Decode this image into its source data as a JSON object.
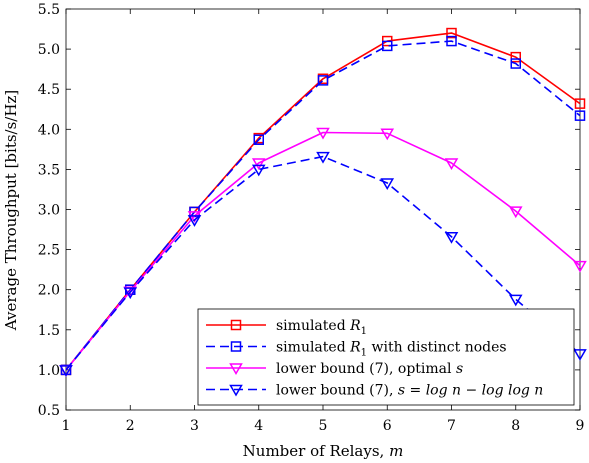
{
  "chart_data": {
    "type": "line",
    "title": "",
    "xlabel": "Number of Relays, m",
    "xlabel_parts": {
      "text": "Number of Relays, ",
      "var": "m"
    },
    "ylabel": "Average Throughput [bits/s/Hz]",
    "x": [
      1,
      2,
      3,
      4,
      5,
      6,
      7,
      8,
      9
    ],
    "xlim": [
      1,
      9
    ],
    "ylim": [
      0.5,
      5.5
    ],
    "xticks": [
      "1",
      "2",
      "3",
      "4",
      "5",
      "6",
      "7",
      "8",
      "9"
    ],
    "yticks": [
      "0.5",
      "1.0",
      "1.5",
      "2.0",
      "2.5",
      "3.0",
      "3.5",
      "4.0",
      "4.5",
      "5.0",
      "5.5"
    ],
    "grid": false,
    "legend_position": "bottom-right",
    "series": [
      {
        "name": "simulated R1",
        "legend": {
          "plain": "simulated ",
          "math": "R",
          "sub": "1",
          "tail": ""
        },
        "color": "#ff0000",
        "line": "solid",
        "marker": "square",
        "values": [
          1.0,
          2.0,
          2.97,
          3.89,
          4.63,
          5.1,
          5.2,
          4.9,
          4.32
        ]
      },
      {
        "name": "simulated R1 with distinct nodes",
        "legend": {
          "plain": "simulated ",
          "math": "R",
          "sub": "1",
          "tail": " with distinct nodes"
        },
        "color": "#0000ff",
        "line": "dashed",
        "marker": "square",
        "values": [
          1.0,
          2.0,
          2.97,
          3.87,
          4.61,
          5.04,
          5.1,
          4.82,
          4.17
        ]
      },
      {
        "name": "lower bound (7), optimal s",
        "legend": {
          "plain": "lower bound (7), optimal ",
          "math": "s",
          "sub": "",
          "tail": ""
        },
        "color": "#ff00ff",
        "line": "solid",
        "marker": "triangle-down",
        "values": [
          1.0,
          1.98,
          2.92,
          3.58,
          3.96,
          3.95,
          3.58,
          2.98,
          2.3
        ]
      },
      {
        "name": "lower bound (7), s = log n − log log n",
        "legend": {
          "plain": "lower bound (7), ",
          "math": "s = log n − log log n",
          "sub": "",
          "tail": ""
        },
        "color": "#0000ff",
        "line": "dashed",
        "marker": "triangle-down",
        "values": [
          1.0,
          1.97,
          2.87,
          3.5,
          3.66,
          3.33,
          2.66,
          1.88,
          1.2
        ]
      }
    ]
  }
}
